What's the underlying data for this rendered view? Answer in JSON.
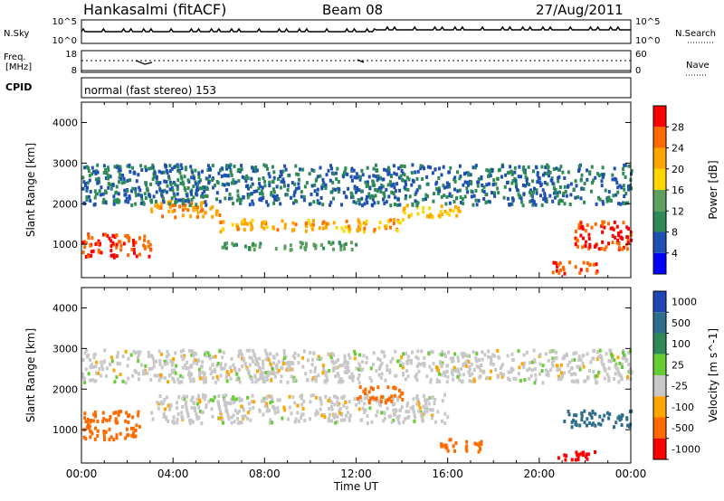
{
  "header": {
    "station": "Hankasalmi (fitACF)",
    "beam": "Beam 08",
    "date": "27/Aug/2011"
  },
  "strip": {
    "nsky_label": "N.Sky",
    "nsky_ticks": [
      "10^5",
      "10^0"
    ],
    "nsearch_label": "N.Search",
    "nsearch_ticks": [
      "10^5",
      "10^0"
    ],
    "freq_label": "Freq.",
    "freq_unit": "[MHz]",
    "freq_ticks": [
      "18",
      "8"
    ],
    "nave_label": "Nave",
    "nave_ticks": [
      "60",
      "0"
    ],
    "cpid_label": "CPID",
    "cpid_text": "normal (fast stereo) 153"
  },
  "colors": {
    "power": [
      "#0000ff",
      "#1e50b4",
      "#2e8b57",
      "#5fa05f",
      "#ffd700",
      "#ffa500",
      "#ff6a00",
      "#ff0000"
    ],
    "velocity": [
      "#1e46b4",
      "#2e6e8c",
      "#2e8b57",
      "#66cc33",
      "#c8c8c8",
      "#ffa500",
      "#ff6a00",
      "#ff0000"
    ],
    "ground_scatter": "#c8c8c8"
  },
  "chart_data": [
    {
      "type": "heatmap",
      "title": "",
      "xlabel": "",
      "ylabel": "Slant Range [km]",
      "xlim": [
        "00:00",
        "00:00"
      ],
      "ylim": [
        180,
        4500
      ],
      "yticks": [
        "1000",
        "2000",
        "3000",
        "4000"
      ],
      "colorbar": {
        "label": "Power [dB]",
        "ticks": [
          "4",
          "8",
          "12",
          "16",
          "20",
          "24",
          "28"
        ],
        "range": [
          0,
          30
        ]
      },
      "series": [
        {
          "name": "",
          "values": [
            {
              "x0": 0.0,
              "x1": 3.0,
              "y0": 700,
              "y1": 1300,
              "v": 28
            },
            {
              "x0": 3.0,
              "x1": 6.0,
              "y0": 1700,
              "y1": 2100,
              "v": 24
            },
            {
              "x0": 6.0,
              "x1": 14.0,
              "y0": 1350,
              "y1": 1650,
              "v": 22
            },
            {
              "x0": 14.0,
              "x1": 16.5,
              "y0": 1700,
              "y1": 2000,
              "v": 20
            },
            {
              "x0": 21.5,
              "x1": 24.0,
              "y0": 900,
              "y1": 1600,
              "v": 28
            },
            {
              "x0": 20.5,
              "x1": 22.5,
              "y0": 300,
              "y1": 600,
              "v": 28
            },
            {
              "x0": 0.0,
              "x1": 24.0,
              "y0": 2000,
              "y1": 3000,
              "v": 8
            },
            {
              "x0": 6.0,
              "x1": 12.0,
              "y0": 900,
              "y1": 1100,
              "v": 12
            }
          ]
        }
      ]
    },
    {
      "type": "heatmap",
      "title": "",
      "xlabel": "Time UT",
      "ylabel": "Slant Range [km]",
      "xlim": [
        "00:00",
        "00:00"
      ],
      "ylim": [
        180,
        4500
      ],
      "yticks": [
        "1000",
        "2000",
        "3000",
        "4000"
      ],
      "xticks": [
        "00:00",
        "04:00",
        "08:00",
        "12:00",
        "16:00",
        "20:00",
        "00:00"
      ],
      "colorbar": {
        "label": "Velocity [m s^-1]",
        "ticks": [
          "1000",
          "500",
          "100",
          "25",
          "-25",
          "-100",
          "-500",
          "-1000"
        ]
      },
      "series": [
        {
          "name": "",
          "values": [
            {
              "x0": 0.0,
              "x1": 2.5,
              "y0": 800,
              "y1": 1500,
              "v": -200
            },
            {
              "x0": 3.0,
              "x1": 16.0,
              "y0": 1200,
              "y1": 1900,
              "v": 0
            },
            {
              "x0": 12.0,
              "x1": 14.0,
              "y0": 1700,
              "y1": 2100,
              "v": -300
            },
            {
              "x0": 15.5,
              "x1": 17.5,
              "y0": 500,
              "y1": 800,
              "v": -300
            },
            {
              "x0": 21.0,
              "x1": 24.0,
              "y0": 1100,
              "y1": 1500,
              "v": 300
            },
            {
              "x0": 20.5,
              "x1": 22.5,
              "y0": 300,
              "y1": 500,
              "v": -1000
            },
            {
              "x0": 0.0,
              "x1": 24.0,
              "y0": 2200,
              "y1": 3000,
              "v": 0
            }
          ]
        }
      ]
    }
  ]
}
